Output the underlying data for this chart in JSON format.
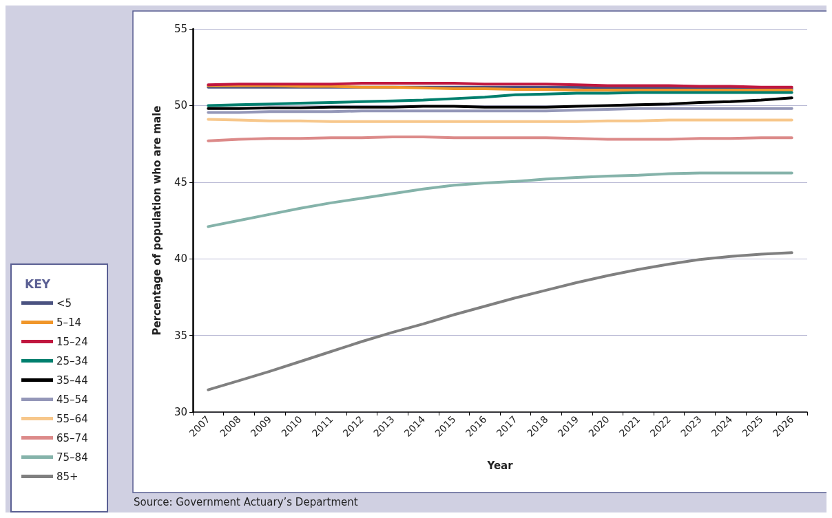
{
  "chart_data": {
    "type": "line",
    "xlabel": "Year",
    "ylabel": "Percentage of population who are male",
    "legend_title": "KEY",
    "annotations": [
      "Source: Government Actuary’s Department"
    ],
    "categories": [
      "2007",
      "2008",
      "2009",
      "2010",
      "2011",
      "2012",
      "2013",
      "2014",
      "2015",
      "2016",
      "2017",
      "2018",
      "2019",
      "2020",
      "2021",
      "2022",
      "2023",
      "2024",
      "2025",
      "2026"
    ],
    "ylim": [
      30,
      55
    ],
    "yticks": [
      30,
      35,
      40,
      45,
      50,
      55
    ],
    "grid": "y",
    "legend": "bottom left",
    "marker": "none",
    "line_style": "solid",
    "series": [
      {
        "name": "<5",
        "color": "#4a5280",
        "values": [
          51.2,
          51.2,
          51.2,
          51.2,
          51.2,
          51.2,
          51.2,
          51.2,
          51.2,
          51.2,
          51.2,
          51.2,
          51.2,
          51.15,
          51.15,
          51.15,
          51.15,
          51.1,
          51.1,
          51.1
        ]
      },
      {
        "name": "5–14",
        "color": "#f0962a",
        "values": [
          51.3,
          51.3,
          51.3,
          51.25,
          51.25,
          51.2,
          51.2,
          51.15,
          51.1,
          51.1,
          51.05,
          51.05,
          51.0,
          51.0,
          51.0,
          51.0,
          51.0,
          51.0,
          51.0,
          51.0
        ]
      },
      {
        "name": "15–24",
        "color": "#c0173f",
        "values": [
          51.35,
          51.4,
          51.4,
          51.4,
          51.4,
          51.45,
          51.45,
          51.45,
          51.45,
          51.4,
          51.4,
          51.4,
          51.35,
          51.3,
          51.3,
          51.3,
          51.25,
          51.25,
          51.2,
          51.2
        ]
      },
      {
        "name": "25–34",
        "color": "#007f6e",
        "values": [
          50.0,
          50.05,
          50.1,
          50.15,
          50.2,
          50.25,
          50.3,
          50.35,
          50.45,
          50.55,
          50.7,
          50.75,
          50.8,
          50.8,
          50.85,
          50.85,
          50.85,
          50.85,
          50.85,
          50.85
        ]
      },
      {
        "name": "35–44",
        "color": "#000000",
        "values": [
          49.8,
          49.8,
          49.85,
          49.85,
          49.9,
          49.9,
          49.9,
          49.95,
          49.95,
          49.9,
          49.9,
          49.9,
          49.95,
          50.0,
          50.05,
          50.1,
          50.2,
          50.25,
          50.35,
          50.5
        ]
      },
      {
        "name": "45–54",
        "color": "#9497b8",
        "values": [
          49.55,
          49.55,
          49.6,
          49.6,
          49.6,
          49.65,
          49.65,
          49.65,
          49.65,
          49.65,
          49.65,
          49.65,
          49.7,
          49.75,
          49.8,
          49.8,
          49.8,
          49.8,
          49.8,
          49.8
        ]
      },
      {
        "name": "55–64",
        "color": "#f7c78b",
        "values": [
          49.1,
          49.05,
          49.0,
          49.0,
          48.95,
          48.95,
          48.95,
          48.95,
          48.95,
          48.95,
          48.95,
          48.95,
          48.95,
          49.0,
          49.0,
          49.05,
          49.05,
          49.05,
          49.05,
          49.05
        ]
      },
      {
        "name": "65–74",
        "color": "#dc8a89",
        "values": [
          47.7,
          47.8,
          47.85,
          47.85,
          47.9,
          47.9,
          47.95,
          47.95,
          47.9,
          47.9,
          47.9,
          47.9,
          47.85,
          47.8,
          47.8,
          47.8,
          47.85,
          47.85,
          47.9,
          47.9
        ]
      },
      {
        "name": "75–84",
        "color": "#85b3aa",
        "values": [
          42.1,
          42.5,
          42.9,
          43.3,
          43.65,
          43.95,
          44.25,
          44.55,
          44.8,
          44.95,
          45.05,
          45.2,
          45.3,
          45.4,
          45.45,
          45.55,
          45.6,
          45.6,
          45.6,
          45.6
        ]
      },
      {
        "name": "85+",
        "color": "#808080",
        "values": [
          31.45,
          32.05,
          32.65,
          33.3,
          33.95,
          34.6,
          35.2,
          35.75,
          36.35,
          36.9,
          37.45,
          37.95,
          38.45,
          38.9,
          39.3,
          39.65,
          39.95,
          40.15,
          40.3,
          40.4
        ]
      }
    ]
  }
}
